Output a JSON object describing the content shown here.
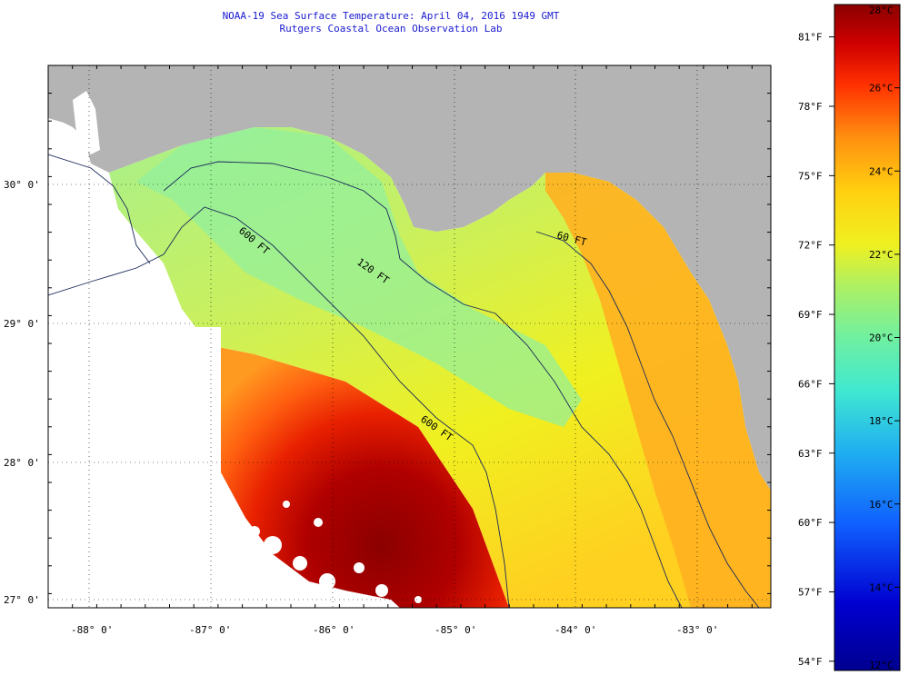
{
  "title": {
    "line1": "NOAA-19 Sea Surface Temperature:  April 04, 2016 1949 GMT",
    "line2": "Rutgers Coastal Ocean Observation Lab"
  },
  "latitude_labels": [
    "30° 0'",
    "29° 0'",
    "28° 0'",
    "27° 0'"
  ],
  "longitude_labels": [
    "-88° 0'",
    "-87° 0'",
    "-86° 0'",
    "-85° 0'",
    "-84° 0'",
    "-83° 0'"
  ],
  "contour_labels": [
    "60 FT",
    "120 FT",
    "600 FT"
  ],
  "colorbar": {
    "fahrenheit_labels": [
      "81°F",
      "78°F",
      "75°F",
      "72°F",
      "69°F",
      "66°F",
      "63°F",
      "60°F",
      "57°F",
      "54°F"
    ],
    "celsius_labels": [
      "28°C",
      "26°C",
      "24°C",
      "22°C",
      "20°C",
      "18°C",
      "16°C",
      "14°C",
      "12°C"
    ],
    "min_celsius": 12,
    "max_celsius": 28
  },
  "colors": {
    "land": "#b4b4b4",
    "title_text": "#1a1ad0",
    "contour": "#1a2a5a",
    "warmest": "#8b0000",
    "coolest": "#000090"
  }
}
